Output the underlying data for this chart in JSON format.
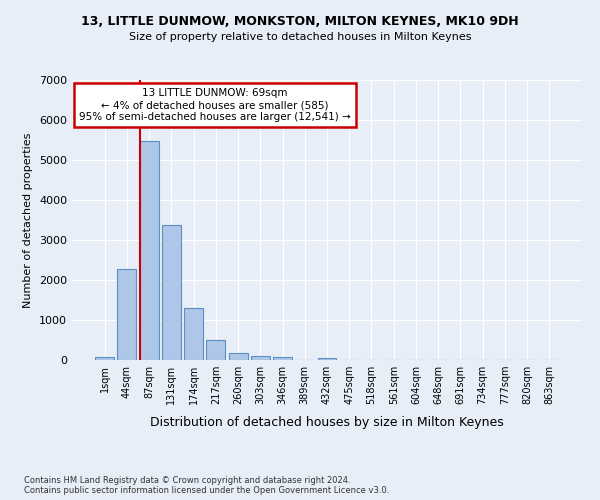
{
  "title_line1": "13, LITTLE DUNMOW, MONKSTON, MILTON KEYNES, MK10 9DH",
  "title_line2": "Size of property relative to detached houses in Milton Keynes",
  "xlabel": "Distribution of detached houses by size in Milton Keynes",
  "ylabel": "Number of detached properties",
  "footnote": "Contains HM Land Registry data © Crown copyright and database right 2024.\nContains public sector information licensed under the Open Government Licence v3.0.",
  "bar_labels": [
    "1sqm",
    "44sqm",
    "87sqm",
    "131sqm",
    "174sqm",
    "217sqm",
    "260sqm",
    "303sqm",
    "346sqm",
    "389sqm",
    "432sqm",
    "475sqm",
    "518sqm",
    "561sqm",
    "604sqm",
    "648sqm",
    "691sqm",
    "734sqm",
    "777sqm",
    "820sqm",
    "863sqm"
  ],
  "bar_values": [
    75,
    2270,
    5480,
    3380,
    1310,
    490,
    175,
    95,
    65,
    0,
    60,
    0,
    0,
    0,
    0,
    0,
    0,
    0,
    0,
    0,
    0
  ],
  "bar_color": "#aec6e8",
  "bar_edgecolor": "#5a8fc4",
  "property_line_label": "13 LITTLE DUNMOW: 69sqm",
  "annotation_line2": "← 4% of detached houses are smaller (585)",
  "annotation_line3": "95% of semi-detached houses are larger (12,541) →",
  "annotation_box_color": "#ffffff",
  "annotation_box_edgecolor": "#cc0000",
  "vline_color": "#cc0000",
  "ylim": [
    0,
    7000
  ],
  "yticks": [
    0,
    1000,
    2000,
    3000,
    4000,
    5000,
    6000,
    7000
  ],
  "background_color": "#e8eef7",
  "grid_color": "#ffffff",
  "vline_index": 1.58
}
